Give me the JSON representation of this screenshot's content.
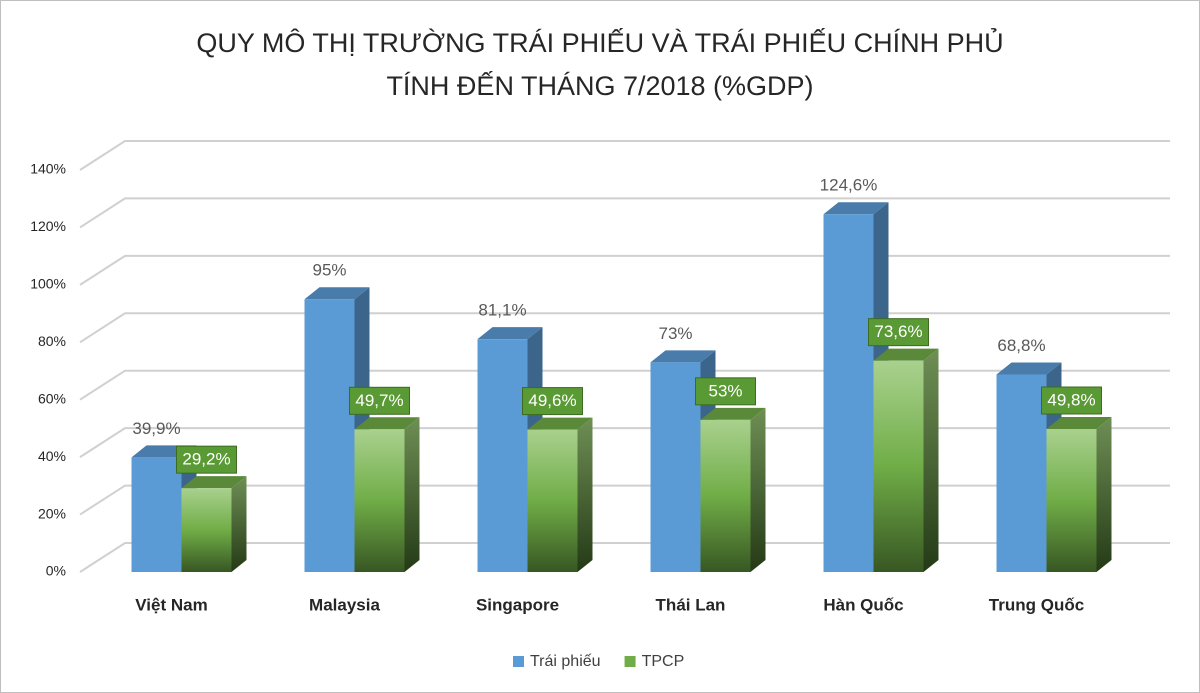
{
  "chart_data": {
    "type": "bar3d",
    "title": [
      "QUY MÔ THỊ TRƯỜNG TRÁI PHIẾU VÀ TRÁI PHIẾU CHÍNH PHỦ",
      "TÍNH ĐẾN THÁNG 7/2018 (%GDP)"
    ],
    "categories": [
      "Việt Nam",
      "Malaysia",
      "Singapore",
      "Thái Lan",
      "Hàn Quốc",
      "Trung Quốc"
    ],
    "series": [
      {
        "name": "Trái phiếu",
        "color": "#5b9bd5",
        "values": [
          39.9,
          95,
          81.1,
          73,
          124.6,
          68.8
        ],
        "value_labels": [
          "39,9%",
          "95%",
          "81,1%",
          "73%",
          "124,6%",
          "68,8%"
        ]
      },
      {
        "name": "TPCP",
        "color": "#70ad47",
        "values": [
          29.2,
          49.7,
          49.6,
          53,
          73.6,
          49.8
        ],
        "value_labels": [
          "29,2%",
          "49,7%",
          "49,6%",
          "53%",
          "73,6%",
          "49,8%"
        ]
      }
    ],
    "ylim": [
      0,
      140
    ],
    "yticks": [
      {
        "value": 0,
        "label": "0%"
      },
      {
        "value": 20,
        "label": "20%"
      },
      {
        "value": 40,
        "label": "40%"
      },
      {
        "value": 60,
        "label": "60%"
      },
      {
        "value": 80,
        "label": "80%"
      },
      {
        "value": 100,
        "label": "100%"
      },
      {
        "value": 120,
        "label": "120%"
      },
      {
        "value": 140,
        "label": "140%"
      }
    ],
    "grid": true,
    "legend": "bottom"
  }
}
